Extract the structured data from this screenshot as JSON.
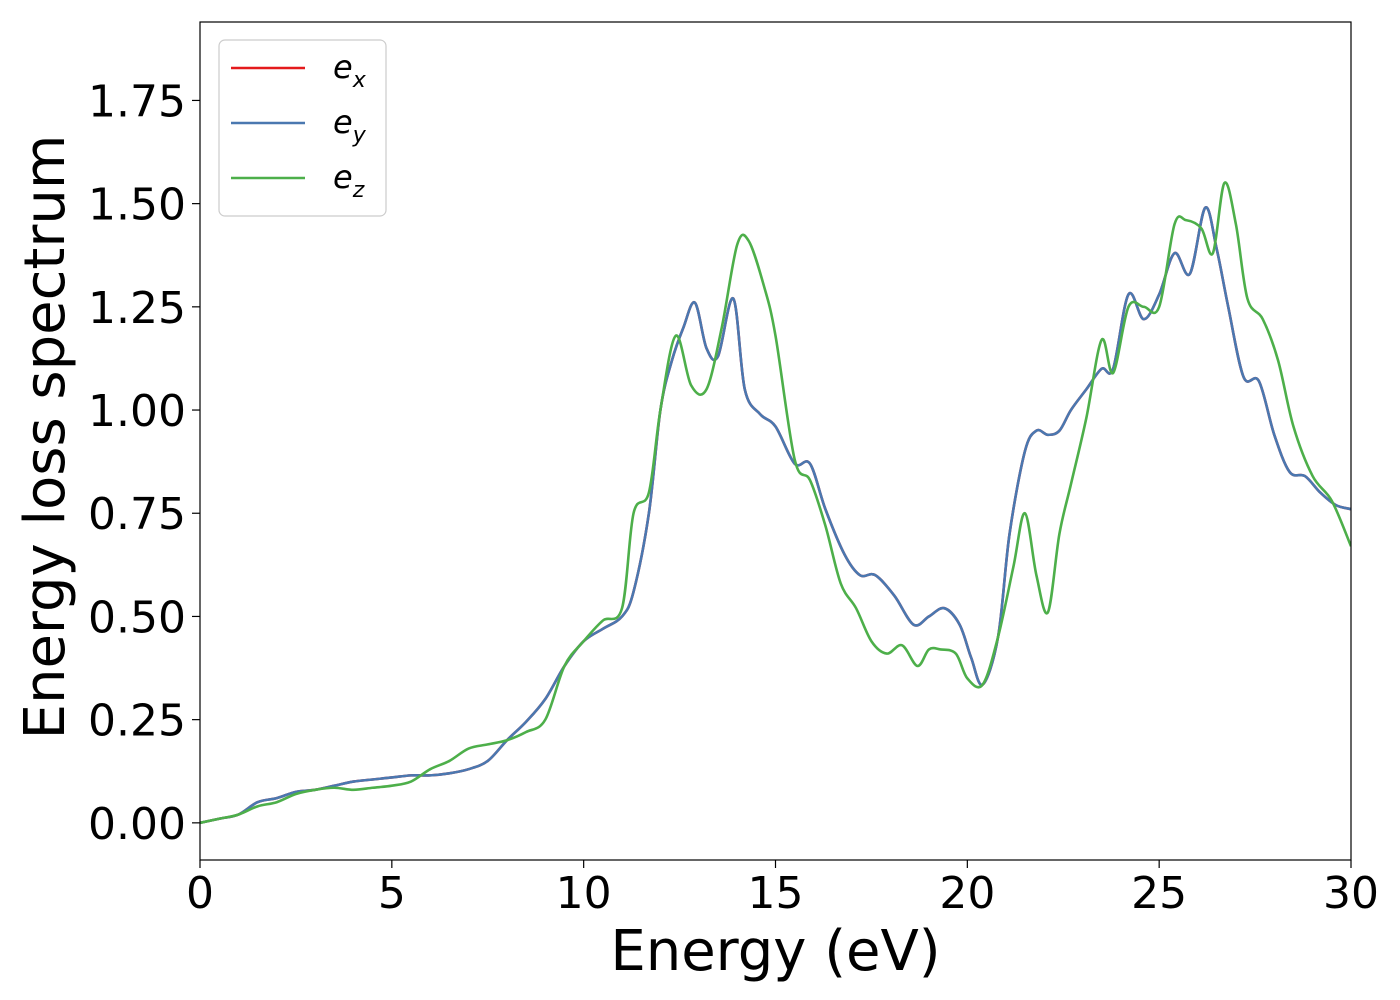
{
  "chart_data": {
    "type": "line",
    "xlabel": "Energy (eV)",
    "ylabel": "Energy loss spectrum",
    "xlim": [
      0,
      30
    ],
    "ylim": [
      -0.09,
      1.94
    ],
    "xticks": [
      0,
      5,
      10,
      15,
      20,
      25,
      30
    ],
    "xtick_labels": [
      "0",
      "5",
      "10",
      "15",
      "20",
      "25",
      "30"
    ],
    "yticks": [
      0.0,
      0.25,
      0.5,
      0.75,
      1.0,
      1.25,
      1.5,
      1.75
    ],
    "ytick_labels": [
      "0.00",
      "0.25",
      "0.50",
      "0.75",
      "1.00",
      "1.25",
      "1.50",
      "1.75"
    ],
    "grid": false,
    "legend_position": "top-left",
    "series": [
      {
        "name": "e_x",
        "legend_base": "e",
        "legend_sub": "x",
        "color": "#e41a1c",
        "x": [
          0,
          0.5,
          1.0,
          1.5,
          2.0,
          2.5,
          3.0,
          3.5,
          4.0,
          4.5,
          5.0,
          5.5,
          6.0,
          6.5,
          7.0,
          7.5,
          8.0,
          8.5,
          9.0,
          9.5,
          10.0,
          10.5,
          11.0,
          11.3,
          11.7,
          12.0,
          12.3,
          12.6,
          12.9,
          13.2,
          13.5,
          13.9,
          14.2,
          14.6,
          15.0,
          15.5,
          15.9,
          16.3,
          16.8,
          17.2,
          17.6,
          18.1,
          18.6,
          19.0,
          19.4,
          19.8,
          20.1,
          20.4,
          20.8,
          21.1,
          21.5,
          21.8,
          22.1,
          22.4,
          22.7,
          23.1,
          23.5,
          23.8,
          24.2,
          24.6,
          25.0,
          25.4,
          25.8,
          26.2,
          26.5,
          26.8,
          27.2,
          27.6,
          28.0,
          28.4,
          28.8,
          29.2,
          29.6,
          30.0
        ],
        "y": [
          0.0,
          0.01,
          0.02,
          0.05,
          0.06,
          0.075,
          0.08,
          0.09,
          0.1,
          0.105,
          0.11,
          0.115,
          0.115,
          0.12,
          0.13,
          0.15,
          0.2,
          0.245,
          0.3,
          0.38,
          0.44,
          0.47,
          0.5,
          0.56,
          0.75,
          1.0,
          1.12,
          1.2,
          1.26,
          1.15,
          1.13,
          1.27,
          1.05,
          0.99,
          0.96,
          0.87,
          0.87,
          0.76,
          0.65,
          0.6,
          0.6,
          0.55,
          0.48,
          0.5,
          0.52,
          0.48,
          0.4,
          0.335,
          0.45,
          0.7,
          0.9,
          0.95,
          0.94,
          0.95,
          1.0,
          1.05,
          1.1,
          1.1,
          1.28,
          1.22,
          1.28,
          1.38,
          1.33,
          1.49,
          1.39,
          1.25,
          1.08,
          1.07,
          0.94,
          0.85,
          0.84,
          0.8,
          0.77,
          0.76
        ]
      },
      {
        "name": "e_y",
        "legend_base": "e",
        "legend_sub": "y",
        "color": "#4a78b0",
        "x": [
          0,
          0.5,
          1.0,
          1.5,
          2.0,
          2.5,
          3.0,
          3.5,
          4.0,
          4.5,
          5.0,
          5.5,
          6.0,
          6.5,
          7.0,
          7.5,
          8.0,
          8.5,
          9.0,
          9.5,
          10.0,
          10.5,
          11.0,
          11.3,
          11.7,
          12.0,
          12.3,
          12.6,
          12.9,
          13.2,
          13.5,
          13.9,
          14.2,
          14.6,
          15.0,
          15.5,
          15.9,
          16.3,
          16.8,
          17.2,
          17.6,
          18.1,
          18.6,
          19.0,
          19.4,
          19.8,
          20.1,
          20.4,
          20.8,
          21.1,
          21.5,
          21.8,
          22.1,
          22.4,
          22.7,
          23.1,
          23.5,
          23.8,
          24.2,
          24.6,
          25.0,
          25.4,
          25.8,
          26.2,
          26.5,
          26.8,
          27.2,
          27.6,
          28.0,
          28.4,
          28.8,
          29.2,
          29.6,
          30.0
        ],
        "y": [
          0.0,
          0.01,
          0.02,
          0.05,
          0.06,
          0.075,
          0.08,
          0.09,
          0.1,
          0.105,
          0.11,
          0.115,
          0.115,
          0.12,
          0.13,
          0.15,
          0.2,
          0.245,
          0.3,
          0.38,
          0.44,
          0.47,
          0.5,
          0.56,
          0.75,
          1.0,
          1.12,
          1.2,
          1.26,
          1.15,
          1.13,
          1.27,
          1.05,
          0.99,
          0.96,
          0.87,
          0.87,
          0.76,
          0.65,
          0.6,
          0.6,
          0.55,
          0.48,
          0.5,
          0.52,
          0.48,
          0.4,
          0.335,
          0.45,
          0.7,
          0.9,
          0.95,
          0.94,
          0.95,
          1.0,
          1.05,
          1.1,
          1.1,
          1.28,
          1.22,
          1.28,
          1.38,
          1.33,
          1.49,
          1.39,
          1.25,
          1.08,
          1.07,
          0.94,
          0.85,
          0.84,
          0.8,
          0.77,
          0.76
        ]
      },
      {
        "name": "e_z",
        "legend_base": "e",
        "legend_sub": "z",
        "color": "#4daf4a",
        "x": [
          0,
          0.5,
          1.0,
          1.5,
          2.0,
          2.5,
          3.0,
          3.5,
          4.0,
          4.5,
          5.0,
          5.5,
          6.0,
          6.5,
          7.0,
          7.5,
          8.0,
          8.5,
          9.0,
          9.5,
          10.0,
          10.5,
          11.0,
          11.3,
          11.7,
          12.0,
          12.4,
          12.8,
          13.2,
          13.6,
          14.0,
          14.3,
          14.7,
          15.0,
          15.5,
          15.9,
          16.3,
          16.7,
          17.1,
          17.5,
          17.9,
          18.3,
          18.7,
          19.0,
          19.3,
          19.7,
          20.0,
          20.4,
          20.8,
          21.2,
          21.5,
          21.8,
          22.1,
          22.4,
          22.7,
          23.1,
          23.5,
          23.8,
          24.2,
          24.6,
          25.0,
          25.4,
          25.7,
          26.1,
          26.4,
          26.7,
          27.0,
          27.3,
          27.7,
          28.1,
          28.5,
          29.0,
          29.5,
          30.0
        ],
        "y": [
          0.0,
          0.01,
          0.02,
          0.04,
          0.05,
          0.07,
          0.08,
          0.085,
          0.08,
          0.085,
          0.09,
          0.1,
          0.13,
          0.15,
          0.18,
          0.19,
          0.2,
          0.22,
          0.25,
          0.38,
          0.44,
          0.49,
          0.52,
          0.75,
          0.8,
          1.0,
          1.18,
          1.06,
          1.05,
          1.2,
          1.4,
          1.41,
          1.3,
          1.18,
          0.88,
          0.83,
          0.72,
          0.58,
          0.52,
          0.44,
          0.41,
          0.43,
          0.38,
          0.42,
          0.42,
          0.41,
          0.35,
          0.335,
          0.45,
          0.62,
          0.75,
          0.6,
          0.51,
          0.7,
          0.82,
          0.98,
          1.17,
          1.09,
          1.25,
          1.25,
          1.25,
          1.45,
          1.46,
          1.44,
          1.38,
          1.55,
          1.45,
          1.27,
          1.22,
          1.12,
          0.96,
          0.84,
          0.78,
          0.67
        ]
      }
    ]
  }
}
